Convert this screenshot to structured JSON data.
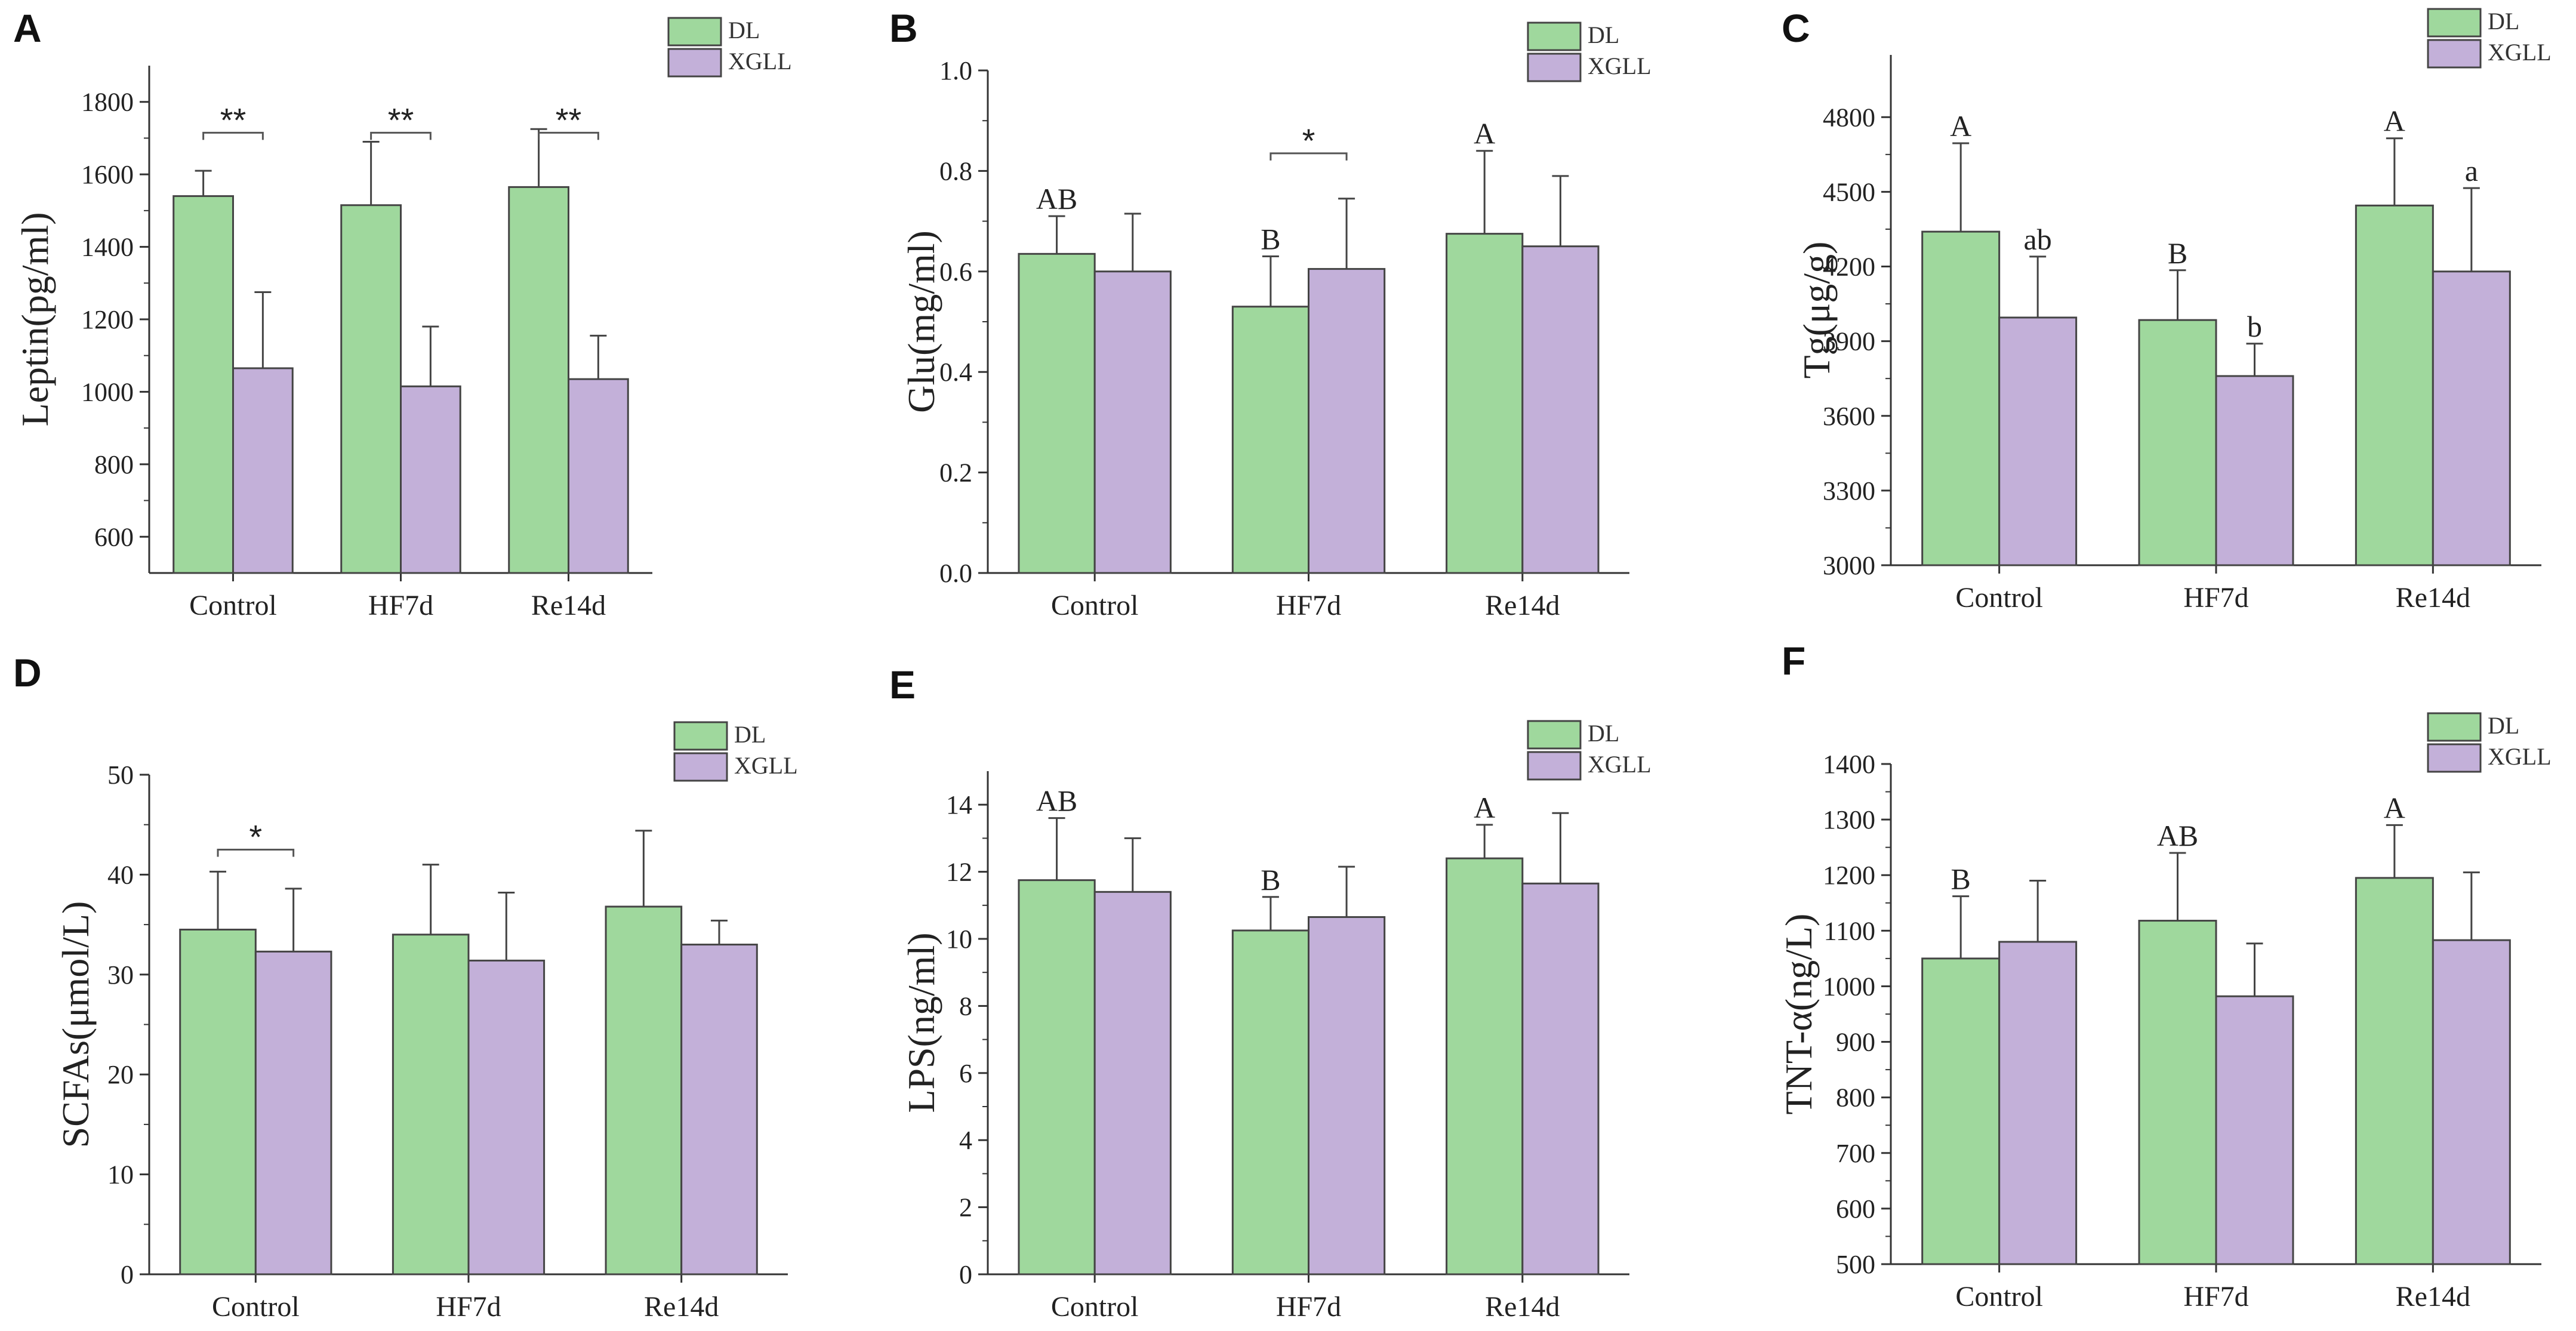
{
  "figure": {
    "colors": {
      "DL": "#9fd89d",
      "XGLL": "#c3b0d9"
    },
    "categories": [
      "Control",
      "HF7d",
      "Re14d"
    ],
    "legend": [
      "DL",
      "XGLL"
    ]
  },
  "chart_data": [
    {
      "panel": "A",
      "type": "bar",
      "ylabel": "Leptin(pg/ml)",
      "ylim": [
        500,
        1900
      ],
      "yticks": [
        600,
        800,
        1000,
        1200,
        1400,
        1600,
        1800
      ],
      "categories": [
        "Control",
        "HF7d",
        "Re14d"
      ],
      "series": [
        {
          "name": "DL",
          "values": [
            1540,
            1515,
            1565
          ],
          "errors": [
            70,
            175,
            160
          ],
          "annotations": [
            "",
            "",
            ""
          ]
        },
        {
          "name": "XGLL",
          "values": [
            1065,
            1015,
            1035
          ],
          "errors": [
            210,
            165,
            120
          ],
          "annotations": [
            "",
            "",
            ""
          ]
        }
      ],
      "brackets": [
        {
          "category": 0,
          "label": "**",
          "level": 1715
        },
        {
          "category": 1,
          "label": "**",
          "level": 1715
        },
        {
          "category": 2,
          "label": "**",
          "level": 1715
        }
      ]
    },
    {
      "panel": "B",
      "type": "bar",
      "ylabel": "Glu(mg/ml)",
      "ylim": [
        0.0,
        1.0
      ],
      "yticks": [
        0.0,
        0.2,
        0.4,
        0.6,
        0.8,
        1.0
      ],
      "categories": [
        "Control",
        "HF7d",
        "Re14d"
      ],
      "series": [
        {
          "name": "DL",
          "values": [
            0.635,
            0.53,
            0.675
          ],
          "errors": [
            0.075,
            0.1,
            0.165
          ],
          "annotations": [
            "AB",
            "B",
            "A"
          ]
        },
        {
          "name": "XGLL",
          "values": [
            0.6,
            0.605,
            0.65
          ],
          "errors": [
            0.115,
            0.14,
            0.14
          ],
          "annotations": [
            "",
            "",
            ""
          ]
        }
      ],
      "brackets": [
        {
          "category": 1,
          "label": "*",
          "level": 0.835
        }
      ]
    },
    {
      "panel": "C",
      "type": "bar",
      "ylabel": "Tg(μg/g)",
      "ylim": [
        3000,
        5050
      ],
      "yticks": [
        3000,
        3300,
        3600,
        3900,
        4200,
        4500,
        4800
      ],
      "categories": [
        "Control",
        "HF7d",
        "Re14d"
      ],
      "series": [
        {
          "name": "DL",
          "values": [
            4340,
            3985,
            4445
          ],
          "errors": [
            355,
            200,
            270
          ],
          "annotations": [
            "A",
            "B",
            "A"
          ]
        },
        {
          "name": "XGLL",
          "values": [
            3995,
            3760,
            4180
          ],
          "errors": [
            245,
            130,
            335
          ],
          "annotations": [
            "ab",
            "b",
            "a"
          ]
        }
      ],
      "brackets": []
    },
    {
      "panel": "D",
      "type": "bar",
      "ylabel": "SCFAs(μmol/L)",
      "ylim": [
        0,
        50
      ],
      "yticks": [
        0,
        10,
        20,
        30,
        40,
        50
      ],
      "categories": [
        "Control",
        "HF7d",
        "Re14d"
      ],
      "series": [
        {
          "name": "DL",
          "values": [
            34.5,
            34.0,
            36.8
          ],
          "errors": [
            5.8,
            7.0,
            7.6
          ],
          "annotations": [
            "",
            "",
            ""
          ]
        },
        {
          "name": "XGLL",
          "values": [
            32.3,
            31.4,
            33.0
          ],
          "errors": [
            6.3,
            6.8,
            2.4
          ],
          "annotations": [
            "",
            "",
            ""
          ]
        }
      ],
      "brackets": [
        {
          "category": 0,
          "label": "*",
          "level": 42.5
        }
      ]
    },
    {
      "panel": "E",
      "type": "bar",
      "ylabel": "LPS(ng/ml)",
      "ylim": [
        0,
        15
      ],
      "yticks": [
        0,
        2,
        4,
        6,
        8,
        10,
        12,
        14
      ],
      "categories": [
        "Control",
        "HF7d",
        "Re14d"
      ],
      "series": [
        {
          "name": "DL",
          "values": [
            11.75,
            10.25,
            12.4
          ],
          "errors": [
            1.85,
            1.0,
            1.0
          ],
          "annotations": [
            "AB",
            "B",
            "A"
          ]
        },
        {
          "name": "XGLL",
          "values": [
            11.4,
            10.65,
            11.65
          ],
          "errors": [
            1.6,
            1.5,
            2.1
          ],
          "annotations": [
            "",
            "",
            ""
          ]
        }
      ],
      "brackets": []
    },
    {
      "panel": "F",
      "type": "bar",
      "ylabel": "TNT-α(ng/L)",
      "ylim": [
        500,
        1400
      ],
      "yticks": [
        500,
        600,
        700,
        800,
        900,
        1000,
        1100,
        1200,
        1300,
        1400
      ],
      "categories": [
        "Control",
        "HF7d",
        "Re14d"
      ],
      "series": [
        {
          "name": "DL",
          "values": [
            1050,
            1118,
            1195
          ],
          "errors": [
            112,
            122,
            95
          ],
          "annotations": [
            "B",
            "AB",
            "A"
          ]
        },
        {
          "name": "XGLL",
          "values": [
            1080,
            982,
            1083
          ],
          "errors": [
            110,
            95,
            122
          ],
          "annotations": [
            "",
            "",
            ""
          ]
        }
      ],
      "brackets": []
    }
  ]
}
